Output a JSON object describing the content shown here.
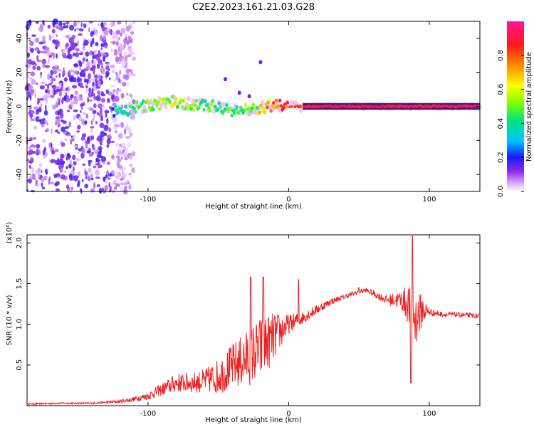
{
  "figure_title": "C2E2.2023.161.21.03.G28",
  "chart_data": [
    {
      "type": "scatter",
      "subtype": "spectrogram",
      "title": "C2E2.2023.161.21.03.G28",
      "xlabel": "Height of straight line (km)",
      "ylabel": "Frequency (Hz)",
      "xlim": [
        -186,
        136
      ],
      "ylim": [
        -50,
        50
      ],
      "xticks": [
        -100,
        0,
        100
      ],
      "yticks": [
        -40,
        -20,
        0,
        20,
        40
      ],
      "xtick_labels": [
        "-100",
        "0",
        "100"
      ],
      "ytick_labels": [
        "-40",
        "-20",
        "0",
        "20",
        "40"
      ],
      "series": [
        {
          "name": "noise region",
          "x_range": [
            -186,
            -110
          ],
          "y_range": [
            -50,
            50
          ],
          "mean_amplitude": 0.15
        },
        {
          "name": "signal track",
          "x": [
            -125,
            -110,
            -95,
            -85,
            -75,
            -65,
            -55,
            -45,
            -35,
            -25,
            -15,
            -5,
            5,
            20,
            40,
            60,
            80,
            100,
            136
          ],
          "y": [
            -3,
            -1,
            1,
            3,
            2,
            1,
            0,
            -1,
            -3,
            -2,
            0,
            0,
            0,
            0,
            0,
            0,
            0,
            0,
            0
          ],
          "amplitude": [
            0.3,
            0.45,
            0.5,
            0.55,
            0.55,
            0.5,
            0.45,
            0.45,
            0.45,
            0.5,
            0.7,
            0.8,
            0.85,
            0.9,
            0.9,
            0.9,
            0.9,
            0.9,
            0.9
          ]
        },
        {
          "name": "side streak",
          "x": [
            -45,
            -35,
            -28,
            -20
          ],
          "y": [
            16,
            8,
            6,
            26
          ]
        }
      ],
      "colorbar": {
        "label": "Normalized spectral amplitude",
        "range": [
          0,
          1
        ],
        "ticks": [
          0.0,
          0.2,
          0.4,
          0.6,
          0.8
        ],
        "tick_labels": [
          "0.0",
          "0.2",
          "0.4",
          "0.6",
          "0.8"
        ],
        "colors": [
          "#ffffff",
          "#d8a6ff",
          "#8a2be2",
          "#1a1aff",
          "#00c8ff",
          "#00e676",
          "#7fff00",
          "#ffff00",
          "#ff8c00",
          "#ff1a1a",
          "#ff1493"
        ]
      }
    },
    {
      "type": "line",
      "title": "",
      "xlabel": "Height of straight line (km)",
      "ylabel": "SNR (10 * v/v)",
      "scale_label": "(x10⁴)",
      "xlim": [
        -186,
        136
      ],
      "ylim": [
        0,
        2.1
      ],
      "xticks": [
        -100,
        0,
        100
      ],
      "yticks": [
        0.5,
        1.0,
        1.5,
        2.0
      ],
      "xtick_labels": [
        "-100",
        "0",
        "100"
      ],
      "ytick_labels": [
        "0.5",
        "1.0",
        "1.5",
        "2.0"
      ],
      "line_color": "#ee2222",
      "series": [
        {
          "name": "SNR",
          "x": [
            -186,
            -160,
            -140,
            -120,
            -110,
            -100,
            -90,
            -80,
            -70,
            -60,
            -50,
            -40,
            -30,
            -20,
            -10,
            0,
            10,
            20,
            30,
            40,
            50,
            55,
            60,
            70,
            80,
            85,
            90,
            95,
            100,
            110,
            120,
            136
          ],
          "y": [
            0.02,
            0.03,
            0.03,
            0.05,
            0.08,
            0.12,
            0.2,
            0.28,
            0.28,
            0.3,
            0.36,
            0.48,
            0.58,
            0.7,
            0.85,
            1.0,
            1.08,
            1.18,
            1.28,
            1.34,
            1.4,
            1.42,
            1.38,
            1.3,
            1.3,
            1.25,
            1.05,
            1.18,
            1.15,
            1.12,
            1.12,
            1.1
          ],
          "noise_amplitude": [
            0.01,
            0.01,
            0.01,
            0.02,
            0.03,
            0.05,
            0.08,
            0.12,
            0.12,
            0.15,
            0.22,
            0.28,
            0.35,
            0.4,
            0.3,
            0.12,
            0.08,
            0.06,
            0.04,
            0.03,
            0.03,
            0.03,
            0.04,
            0.06,
            0.12,
            0.25,
            0.35,
            0.2,
            0.05,
            0.03,
            0.03,
            0.03
          ]
        }
      ],
      "spikes": [
        {
          "x": 88,
          "y": 2.1
        },
        {
          "x": 87,
          "y": 0.28
        },
        {
          "x": -27,
          "y": 1.58
        },
        {
          "x": -18,
          "y": 1.58
        },
        {
          "x": 7,
          "y": 1.55
        },
        {
          "x": 50,
          "y": 1.45
        }
      ]
    }
  ]
}
